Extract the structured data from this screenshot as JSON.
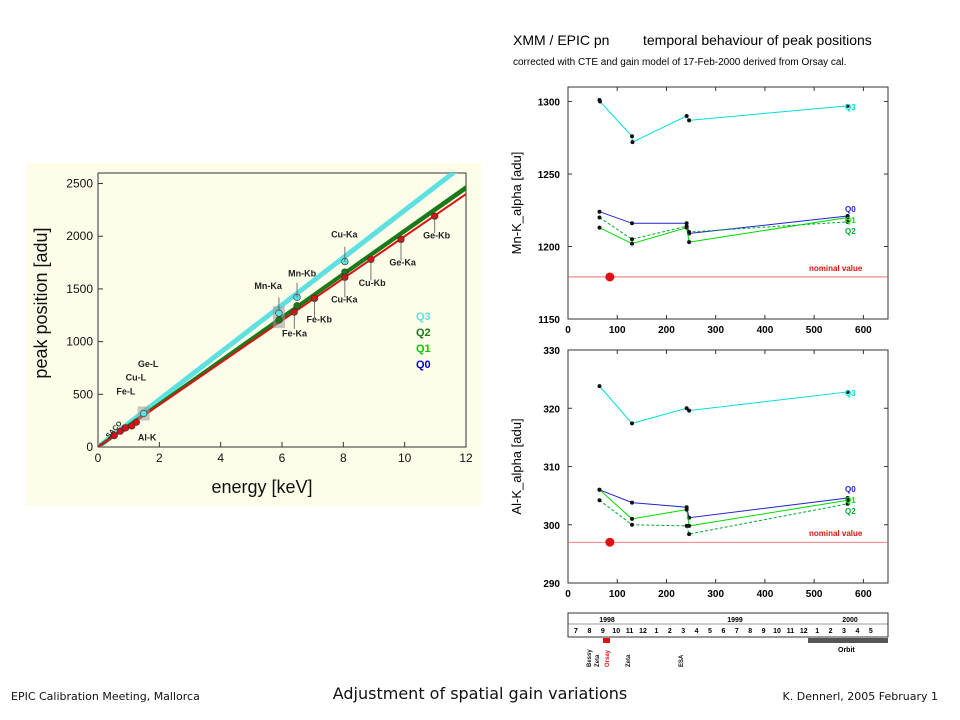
{
  "footer": {
    "left": "EPIC Calibration Meeting, Mallorca",
    "center": "Adjustment of spatial gain variations",
    "right": "K. Dennerl, 2005 February 1"
  },
  "colors": {
    "Q0": "#0000cc",
    "Q1": "#00dd00",
    "Q2": "#00aa33",
    "Q3": "#00dddd",
    "red": "#dd1111",
    "dark_green": "#1a7a1a"
  },
  "chart_data": [
    {
      "type": "line",
      "xlabel": "energy  [keV]",
      "ylabel": "peak position  [adu]",
      "xlim": [
        0,
        12
      ],
      "ylim": [
        0,
        2600
      ],
      "xticks": [
        0,
        2,
        4,
        6,
        8,
        10,
        12
      ],
      "yticks": [
        0,
        500,
        1000,
        1500,
        2000,
        2500
      ],
      "legend": [
        "Q3",
        "Q2",
        "Q1",
        "Q0"
      ],
      "lines": [
        {
          "name": "Q3",
          "color": "#5fe0e0",
          "x": [
            0,
            12
          ],
          "y": [
            0,
            2695
          ]
        },
        {
          "name": "Q2",
          "color": "#1a7a1a",
          "x": [
            0,
            12
          ],
          "y": [
            0,
            2470
          ]
        },
        {
          "name": "Q1",
          "color": "#1a7a1a",
          "x": [
            0,
            12
          ],
          "y": [
            0,
            2450
          ]
        },
        {
          "name": "red",
          "color": "#dd1111",
          "x": [
            0,
            12
          ],
          "y": [
            0,
            2400
          ]
        }
      ],
      "points": [
        {
          "label": "C",
          "x": 0.53,
          "y": 108,
          "color": "#dd1111"
        },
        {
          "label": "O",
          "x": 0.73,
          "y": 150,
          "color": "#dd1111"
        },
        {
          "label": "F",
          "x": 0.88,
          "y": 180,
          "color": "#dd1111"
        },
        {
          "label": "Fe-L",
          "x": 0.9,
          "y": 182,
          "color": "#dd1111"
        },
        {
          "label": "Cu-L",
          "x": 1.1,
          "y": 200,
          "color": "#dd1111"
        },
        {
          "label": "Ge-L",
          "x": 1.25,
          "y": 235,
          "color": "#dd1111"
        },
        {
          "label": "Al-K",
          "x": 1.49,
          "y": 318,
          "color": "#5fe0e0"
        },
        {
          "label": "Mn-Ka",
          "x": 5.9,
          "y": 1270,
          "color": "#5fe0e0"
        },
        {
          "label": "Mn-Ka",
          "x": 5.9,
          "y": 1205,
          "color": "#1a7a1a"
        },
        {
          "label": "Fe-Ka",
          "x": 6.4,
          "y": 1280,
          "color": "#dd1111"
        },
        {
          "label": "Mn-Kb",
          "x": 6.49,
          "y": 1420,
          "color": "#5fe0e0"
        },
        {
          "label": "",
          "x": 6.49,
          "y": 1340,
          "color": "#1a7a1a"
        },
        {
          "label": "Fe-Kb",
          "x": 7.06,
          "y": 1410,
          "color": "#dd1111"
        },
        {
          "label": "Cu-Ka",
          "x": 8.05,
          "y": 1760,
          "color": "#5fe0e0"
        },
        {
          "label": "",
          "x": 8.05,
          "y": 1660,
          "color": "#1a7a1a"
        },
        {
          "label": "Cu-Ka",
          "x": 8.05,
          "y": 1610,
          "color": "#dd1111"
        },
        {
          "label": "Cu-Kb",
          "x": 8.9,
          "y": 1780,
          "color": "#dd1111"
        },
        {
          "label": "Ge-Ka",
          "x": 9.88,
          "y": 1970,
          "color": "#dd1111"
        },
        {
          "label": "Ge-Kb",
          "x": 10.98,
          "y": 2190,
          "color": "#dd1111"
        }
      ],
      "labels": [
        "SACO",
        "Fe-L",
        "Cu-L",
        "Ge-L",
        "Al-K",
        "Mn-Ka",
        "Fe-Ka",
        "Mn-Kb",
        "Fe-Kb",
        "Cu-Ka",
        "Cu-Ka",
        "Cu-Kb",
        "Ge-Ka",
        "Ge-Kb"
      ]
    },
    {
      "type": "line",
      "title": "XMM / EPIC pn",
      "title2": "temporal behaviour of peak positions",
      "subtitle": "corrected with CTE and gain model of 17-Feb-2000 derived from Orsay cal.",
      "ylabel": "Mn-K_alpha  [adu]",
      "xlim": [
        0,
        650
      ],
      "ylim": [
        1150,
        1310
      ],
      "xticks": [
        0,
        100,
        200,
        300,
        400,
        500,
        600
      ],
      "yticks": [
        1150,
        1200,
        1250,
        1300
      ],
      "nominal": {
        "y": 1179,
        "label": "nominal value",
        "marker_x": 85
      },
      "series": [
        {
          "name": "Q3",
          "color": "#00dddd",
          "x": [
            64,
            65,
            130,
            131,
            241,
            246,
            568
          ],
          "y": [
            1301,
            1300,
            1276,
            1272,
            1290,
            1287,
            1297
          ]
        },
        {
          "name": "Q0",
          "color": "#2222cc",
          "x": [
            64,
            130,
            241,
            246,
            568
          ],
          "y": [
            1224,
            1216,
            1216,
            1209,
            1221
          ]
        },
        {
          "name": "Q1",
          "color": "#00dd00",
          "x": [
            64,
            130,
            241,
            246,
            568
          ],
          "y": [
            1213,
            1202,
            1213,
            1203,
            1220
          ]
        },
        {
          "name": "Q2",
          "color": "#00aa33",
          "x": [
            64,
            130,
            241,
            246,
            568
          ],
          "y": [
            1220,
            1205,
            1214,
            1210,
            1217
          ]
        }
      ]
    },
    {
      "type": "line",
      "ylabel": "Al-K_alpha  [adu]",
      "xlim": [
        0,
        650
      ],
      "ylim": [
        290,
        330
      ],
      "xticks": [
        0,
        100,
        200,
        300,
        400,
        500,
        600
      ],
      "yticks": [
        290,
        300,
        310,
        320,
        330
      ],
      "nominal": {
        "y": 297,
        "label": "nominal value",
        "marker_x": 85
      },
      "series": [
        {
          "name": "Q3",
          "color": "#00dddd",
          "x": [
            64,
            130,
            241,
            246,
            568
          ],
          "y": [
            323.8,
            317.4,
            320.0,
            319.6,
            322.8
          ]
        },
        {
          "name": "Q0",
          "color": "#2222cc",
          "x": [
            64,
            130,
            241,
            246,
            568
          ],
          "y": [
            306.0,
            303.8,
            303.0,
            301.2,
            304.6
          ]
        },
        {
          "name": "Q1",
          "color": "#00dd00",
          "x": [
            64,
            130,
            241,
            246,
            568
          ],
          "y": [
            306.0,
            301.0,
            302.6,
            299.8,
            304.2
          ]
        },
        {
          "name": "Q2",
          "color": "#00aa33",
          "x": [
            64,
            130,
            241,
            246,
            568
          ],
          "y": [
            304.2,
            300.0,
            299.8,
            298.4,
            303.6
          ]
        }
      ]
    }
  ],
  "timeline": {
    "years": [
      "1998",
      "1999",
      "2000"
    ],
    "months": [
      "7",
      "8",
      "9",
      "10",
      "11",
      "12",
      "1",
      "2",
      "3",
      "4",
      "5",
      "6",
      "7",
      "8",
      "9",
      "10",
      "11",
      "12",
      "1",
      "2",
      "3",
      "4",
      "5"
    ],
    "events": [
      "Bessy",
      "Zeta",
      "Orsay",
      "Zeta",
      "ESA"
    ],
    "orbit": "Orbit"
  }
}
